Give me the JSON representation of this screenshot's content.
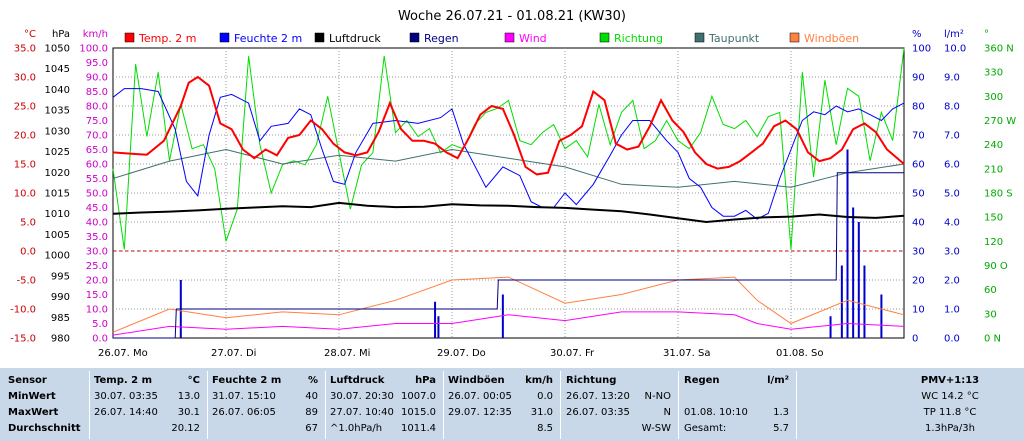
{
  "chart_data": {
    "type": "line",
    "title": "Woche 26.07.21 - 01.08.21 (KW30)",
    "x": {
      "ticks": [
        "26.07. Mo",
        "27.07. Di",
        "28.07. Mi",
        "29.07. Do",
        "30.07. Fr",
        "31.07. Sa",
        "01.08. So"
      ]
    },
    "axes_left": [
      {
        "unit": "°C",
        "color": "#cc0000",
        "range": [
          -15,
          35
        ],
        "ticks": [
          "35.0",
          "30.0",
          "25.0",
          "20.0",
          "15.0",
          "10.0",
          "5.0",
          "0.0",
          "-5.0",
          "-10.0",
          "-15.0"
        ]
      },
      {
        "unit": "hPa",
        "color": "#000000",
        "range": [
          980,
          1050
        ],
        "ticks": [
          "1050",
          "1045",
          "1040",
          "1035",
          "1030",
          "1025",
          "1020",
          "1015",
          "1010",
          "1005",
          "1000",
          "995",
          "990",
          "985",
          "980"
        ]
      },
      {
        "unit": "km/h",
        "color": "#cc00cc",
        "range": [
          0,
          100
        ],
        "ticks": [
          "100.0",
          "95.0",
          "90.0",
          "85.0",
          "80.0",
          "75.0",
          "70.0",
          "65.0",
          "60.0",
          "55.0",
          "50.0",
          "45.0",
          "40.0",
          "35.0",
          "30.0",
          "25.0",
          "20.0",
          "15.0",
          "10.0",
          "5.0",
          "0.0"
        ]
      }
    ],
    "axes_right": [
      {
        "unit": "%",
        "color": "#0000cc",
        "range": [
          0,
          100
        ],
        "ticks": [
          "100",
          "90",
          "80",
          "70",
          "60",
          "50",
          "40",
          "30",
          "20",
          "10",
          "0"
        ]
      },
      {
        "unit": "l/m²",
        "color": "#0000cc",
        "range": [
          0,
          10
        ],
        "ticks": [
          "10.0",
          "9.0",
          "8.0",
          "7.0",
          "6.0",
          "5.0",
          "4.0",
          "3.0",
          "2.0",
          "1.0",
          "0.0"
        ]
      },
      {
        "unit": "°",
        "color": "#00aa00",
        "range": [
          0,
          360
        ],
        "ticks": [
          "360 N",
          "330",
          "300",
          "270 W",
          "240",
          "210",
          "180 S",
          "150",
          "120",
          "90 O",
          "60",
          "30",
          "0 N"
        ]
      }
    ],
    "legend": [
      {
        "name": "Temp. 2 m",
        "color": "#ff0000"
      },
      {
        "name": "Feuchte  2 m",
        "color": "#0000ff"
      },
      {
        "name": "Luftdruck",
        "color": "#000000"
      },
      {
        "name": "Regen",
        "color": "#000080"
      },
      {
        "name": "Wind",
        "color": "#ff00ff"
      },
      {
        "name": "Richtung",
        "color": "#00dd00"
      },
      {
        "name": "Taupunkt",
        "color": "#407070"
      },
      {
        "name": "Windböen",
        "color": "#ff8040"
      }
    ],
    "series": [
      {
        "name": "Temp. 2 m",
        "unit": "°C",
        "x": [
          0,
          0.15,
          0.3,
          0.45,
          0.6,
          0.67,
          0.75,
          0.85,
          0.95,
          1.05,
          1.15,
          1.25,
          1.35,
          1.45,
          1.55,
          1.65,
          1.75,
          1.85,
          1.95,
          2.05,
          2.15,
          2.25,
          2.35,
          2.45,
          2.55,
          2.65,
          2.75,
          2.85,
          2.95,
          3.05,
          3.15,
          3.25,
          3.35,
          3.45,
          3.55,
          3.65,
          3.75,
          3.85,
          3.95,
          4.05,
          4.15,
          4.25,
          4.35,
          4.45,
          4.55,
          4.65,
          4.75,
          4.85,
          4.95,
          5.05,
          5.15,
          5.25,
          5.35,
          5.45,
          5.55,
          5.65,
          5.75,
          5.85,
          5.95,
          6.05,
          6.15,
          6.25,
          6.35,
          6.45,
          6.55,
          6.65,
          6.75,
          6.85,
          7.0
        ],
        "values": [
          17.0,
          16.8,
          16.6,
          19.0,
          25.0,
          29.0,
          30.0,
          28.5,
          22.0,
          21.0,
          17.5,
          16.0,
          17.5,
          16.5,
          19.5,
          20.0,
          22.5,
          21.0,
          18.5,
          17.0,
          16.5,
          17.0,
          20.5,
          25.5,
          21.0,
          19.0,
          19.0,
          18.5,
          17.0,
          16.0,
          19.5,
          23.5,
          25.0,
          24.5,
          20.0,
          14.5,
          13.2,
          13.5,
          19.0,
          20.0,
          21.5,
          27.5,
          26.0,
          18.5,
          17.5,
          18.0,
          21.5,
          26.0,
          22.5,
          20.5,
          17.0,
          15.0,
          14.2,
          14.5,
          15.5,
          17.0,
          18.5,
          21.5,
          22.5,
          21.0,
          17.0,
          15.5,
          16.0,
          17.5,
          21.0,
          22.0,
          20.5,
          17.5,
          15.0
        ]
      },
      {
        "name": "Feuchte  2 m",
        "unit": "%",
        "x": [
          0,
          0.1,
          0.25,
          0.4,
          0.55,
          0.65,
          0.75,
          0.85,
          0.95,
          1.05,
          1.2,
          1.3,
          1.4,
          1.55,
          1.65,
          1.75,
          1.85,
          1.95,
          2.05,
          2.15,
          2.3,
          2.5,
          2.7,
          2.9,
          3.0,
          3.1,
          3.3,
          3.45,
          3.6,
          3.7,
          3.8,
          3.9,
          4.0,
          4.1,
          4.25,
          4.4,
          4.5,
          4.6,
          4.75,
          4.9,
          5.0,
          5.1,
          5.2,
          5.3,
          5.4,
          5.5,
          5.6,
          5.7,
          5.8,
          5.9,
          6.0,
          6.1,
          6.2,
          6.3,
          6.4,
          6.5,
          6.6,
          6.7,
          6.8,
          6.9,
          7.0
        ],
        "values": [
          83,
          86,
          86,
          85,
          72,
          54,
          49,
          70,
          83,
          84,
          81,
          68,
          73,
          74,
          79,
          77,
          65,
          54,
          53,
          64,
          74,
          75,
          74,
          76,
          79,
          67,
          52,
          59,
          56,
          47,
          45,
          45,
          50,
          46,
          53,
          63,
          70,
          75,
          75,
          68,
          64,
          55,
          52,
          45,
          42,
          42,
          44,
          41,
          43,
          55,
          65,
          75,
          78,
          77,
          80,
          78,
          79,
          77,
          75,
          79,
          81
        ]
      },
      {
        "name": "Luftdruck",
        "unit": "hPa",
        "x": [
          0,
          0.25,
          0.5,
          0.75,
          1.0,
          1.25,
          1.5,
          1.75,
          2.0,
          2.25,
          2.5,
          2.75,
          3.0,
          3.25,
          3.5,
          3.75,
          4.0,
          4.25,
          4.5,
          4.75,
          5.0,
          5.25,
          5.5,
          5.75,
          6.0,
          6.25,
          6.5,
          6.75,
          7.0
        ],
        "values": [
          1010.0,
          1010.3,
          1010.5,
          1010.8,
          1011.2,
          1011.5,
          1011.8,
          1011.6,
          1012.6,
          1011.9,
          1011.6,
          1011.7,
          1012.3,
          1012.0,
          1011.9,
          1011.6,
          1011.4,
          1011.0,
          1010.6,
          1009.8,
          1008.9,
          1008.0,
          1008.6,
          1009.1,
          1009.3,
          1009.8,
          1009.2,
          1009.0,
          1009.5
        ]
      },
      {
        "name": "Taupunkt",
        "unit": "°C",
        "x": [
          0,
          0.5,
          1.0,
          1.5,
          2.0,
          2.5,
          3.0,
          3.5,
          4.0,
          4.5,
          5.0,
          5.5,
          6.0,
          6.5,
          7.0
        ],
        "values": [
          12.5,
          15.5,
          17.5,
          15.0,
          16.5,
          15.5,
          17.5,
          16.0,
          14.5,
          11.5,
          11.0,
          12.0,
          11.0,
          13.5,
          15.0
        ]
      },
      {
        "name": "Wind",
        "unit": "km/h",
        "x": [
          0,
          0.5,
          1.0,
          1.5,
          2.0,
          2.5,
          3.0,
          3.5,
          4.0,
          4.5,
          5.0,
          5.5,
          5.7,
          6.0,
          6.5,
          7.0
        ],
        "values": [
          1,
          4,
          3,
          4,
          3,
          5,
          5,
          8,
          6,
          9,
          9,
          8,
          5,
          3,
          5,
          4
        ]
      },
      {
        "name": "Windböen",
        "unit": "km/h",
        "x": [
          0,
          0.5,
          1.0,
          1.5,
          2.0,
          2.5,
          3.0,
          3.5,
          4.0,
          4.5,
          5.0,
          5.5,
          5.7,
          6.0,
          6.5,
          7.0
        ],
        "values": [
          2,
          10,
          7,
          9,
          8,
          13,
          20,
          21,
          12,
          15,
          20,
          21,
          13,
          5,
          13,
          8
        ]
      },
      {
        "name": "Richtung",
        "unit": "°",
        "x": [
          0,
          0.1,
          0.2,
          0.3,
          0.4,
          0.5,
          0.6,
          0.7,
          0.8,
          0.9,
          1.0,
          1.1,
          1.2,
          1.3,
          1.4,
          1.5,
          1.6,
          1.7,
          1.8,
          1.9,
          2.0,
          2.1,
          2.2,
          2.3,
          2.4,
          2.5,
          2.6,
          2.7,
          2.8,
          2.9,
          3.0,
          3.1,
          3.2,
          3.3,
          3.4,
          3.5,
          3.6,
          3.7,
          3.8,
          3.9,
          4.0,
          4.1,
          4.2,
          4.3,
          4.4,
          4.5,
          4.6,
          4.7,
          4.8,
          4.9,
          5.0,
          5.1,
          5.2,
          5.3,
          5.4,
          5.5,
          5.6,
          5.7,
          5.8,
          5.9,
          6.0,
          6.1,
          6.2,
          6.3,
          6.4,
          6.5,
          6.6,
          6.7,
          6.8,
          6.9,
          7.0
        ],
        "values": [
          210,
          110,
          340,
          250,
          330,
          220,
          290,
          235,
          240,
          210,
          120,
          160,
          350,
          240,
          180,
          215,
          220,
          215,
          240,
          300,
          230,
          160,
          215,
          230,
          350,
          255,
          270,
          250,
          260,
          230,
          240,
          235,
          265,
          280,
          285,
          295,
          245,
          240,
          255,
          265,
          235,
          245,
          225,
          290,
          240,
          280,
          295,
          235,
          245,
          270,
          245,
          235,
          255,
          300,
          265,
          260,
          270,
          250,
          275,
          280,
          110,
          330,
          200,
          320,
          240,
          310,
          300,
          220,
          280,
          245,
          360
        ]
      },
      {
        "name": "Regen",
        "unit": "l/m²",
        "x": [
          0,
          0.55,
          0.56,
          3.4,
          3.41,
          5.75,
          6.0,
          6.4,
          6.41,
          7.0
        ],
        "values": [
          0,
          0,
          1.0,
          1.0,
          2.0,
          2.0,
          2.0,
          2.0,
          5.7,
          5.7
        ]
      }
    ],
    "rain_bars": {
      "unit": "l/m²",
      "x": [
        0.6,
        2.85,
        2.88,
        3.45,
        6.35,
        6.45,
        6.5,
        6.55,
        6.6,
        6.65,
        6.8
      ],
      "values": [
        0.4,
        0.25,
        0.15,
        0.3,
        0.15,
        0.5,
        1.3,
        0.9,
        0.8,
        0.5,
        0.3
      ]
    }
  },
  "table": {
    "headers": [
      {
        "label": "Sensor",
        "unit": ""
      },
      {
        "label": "Temp. 2 m",
        "unit": "°C"
      },
      {
        "label": "Feuchte  2 m",
        "unit": "%"
      },
      {
        "label": "Luftdruck",
        "unit": "hPa"
      },
      {
        "label": "Windböen",
        "unit": "km/h"
      },
      {
        "label": "Richtung",
        "unit": ""
      },
      {
        "label": "Regen",
        "unit": "l/m²"
      },
      {
        "label": "PMV+1:13",
        "unit": ""
      }
    ],
    "rows": [
      {
        "label": "MinWert",
        "temp": {
          "time": "30.07.  03:35",
          "val": "13.0"
        },
        "hum": {
          "time": "31.07.  15:10",
          "val": "40"
        },
        "press": {
          "time": "30.07.  20:30",
          "val": "1007.0"
        },
        "gust": {
          "time": "26.07.  00:05",
          "val": "0.0"
        },
        "dir": {
          "time": "26.07.  13:20",
          "val": "N-NO"
        },
        "rain": {
          "time": "",
          "val": ""
        },
        "pmv": "WC 14.2 °C"
      },
      {
        "label": "MaxWert",
        "temp": {
          "time": "26.07.  14:40",
          "val": "30.1"
        },
        "hum": {
          "time": "26.07.  06:05",
          "val": "89"
        },
        "press": {
          "time": "27.07.  10:40",
          "val": "1015.0"
        },
        "gust": {
          "time": "29.07.  12:35",
          "val": "31.0"
        },
        "dir": {
          "time": "26.07.  03:35",
          "val": "N"
        },
        "rain": {
          "time": "01.08.  10:10",
          "val": "1.3"
        },
        "pmv": "TP 11.8 °C"
      },
      {
        "label": "Durchschnitt",
        "temp": {
          "time": "",
          "val": "20.12"
        },
        "hum": {
          "time": "",
          "val": "67"
        },
        "press": {
          "time": "^1.0hPa/h",
          "val": "1011.4"
        },
        "gust": {
          "time": "",
          "val": "8.5"
        },
        "dir": {
          "time": "",
          "val": "W-SW"
        },
        "rain": {
          "time": "Gesamt:",
          "val": "5.7"
        },
        "pmv": "1.3hPa/3h"
      }
    ]
  }
}
